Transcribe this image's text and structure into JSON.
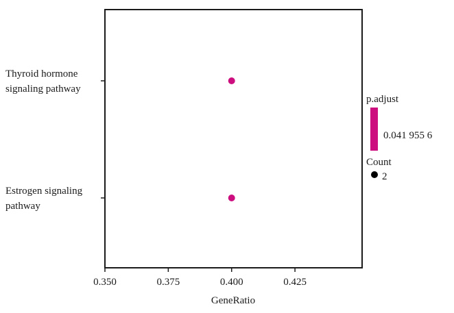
{
  "chart_data": {
    "type": "scatter",
    "xlabel": "GeneRatio",
    "ylabel": "",
    "xlim": [
      0.35,
      0.4515
    ],
    "x_ticks": [
      "0.350",
      "0.375",
      "0.400",
      "0.425"
    ],
    "x_tick_values": [
      0.35,
      0.375,
      0.4,
      0.425
    ],
    "categories": [
      [
        "Thyroid hormone",
        "signaling pathway"
      ],
      [
        "Estrogen signaling",
        "pathway"
      ]
    ],
    "points": [
      {
        "x": 0.4,
        "count": 2,
        "p_adjust": 0.0419556
      },
      {
        "x": 0.4,
        "count": 2,
        "p_adjust": 0.0419556
      }
    ],
    "point_color": "#cc0e7f",
    "legend": {
      "color_title": "p.adjust",
      "color_value_label": "0.041 955 6",
      "color": "#cc0e7f",
      "size_title": "Count",
      "size_value_label": "2",
      "size_color": "#000000"
    }
  }
}
